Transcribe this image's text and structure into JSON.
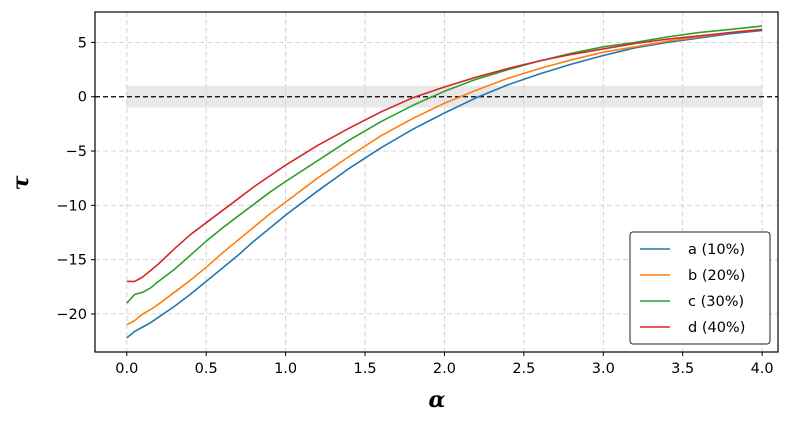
{
  "chart_data": {
    "type": "line",
    "xlabel": "α",
    "ylabel": "τ",
    "xlim": [
      -0.2,
      4.1
    ],
    "ylim": [
      -23.5,
      7.8
    ],
    "xticks": [
      0.0,
      0.5,
      1.0,
      1.5,
      2.0,
      2.5,
      3.0,
      3.5,
      4.0
    ],
    "xtick_labels": [
      "0.0",
      "0.5",
      "1.0",
      "1.5",
      "2.0",
      "2.5",
      "3.0",
      "3.5",
      "4.0"
    ],
    "yticks": [
      5,
      0,
      -5,
      -10,
      -15,
      -20
    ],
    "ytick_labels": [
      "5",
      "0",
      "−5",
      "−10",
      "−15",
      "−20"
    ],
    "grid": true,
    "legend_position": "lower-right",
    "reference_line": {
      "y": 0,
      "style": "dashed",
      "color": "#000000"
    },
    "band": {
      "y_range": [
        -1,
        1
      ],
      "x_range": [
        0,
        4
      ],
      "color": "#e8e8e8"
    },
    "x": [
      0.0,
      0.05,
      0.1,
      0.15,
      0.2,
      0.3,
      0.4,
      0.5,
      0.6,
      0.7,
      0.8,
      0.9,
      1.0,
      1.2,
      1.4,
      1.6,
      1.8,
      2.0,
      2.2,
      2.4,
      2.6,
      2.8,
      3.0,
      3.2,
      3.4,
      3.6,
      3.8,
      4.0
    ],
    "series": [
      {
        "name": "a (10%)",
        "color": "#1f77b4",
        "values": [
          -22.2,
          -21.6,
          -21.2,
          -20.8,
          -20.3,
          -19.3,
          -18.2,
          -17.0,
          -15.8,
          -14.6,
          -13.3,
          -12.1,
          -10.9,
          -8.7,
          -6.6,
          -4.7,
          -3.0,
          -1.5,
          -0.1,
          1.1,
          2.1,
          3.0,
          3.8,
          4.5,
          5.0,
          5.4,
          5.8,
          6.1
        ]
      },
      {
        "name": "b (20%)",
        "color": "#ff7f0e",
        "values": [
          -21.0,
          -20.6,
          -20.0,
          -19.6,
          -19.1,
          -18.0,
          -16.9,
          -15.7,
          -14.4,
          -13.2,
          -12.0,
          -10.8,
          -9.7,
          -7.5,
          -5.5,
          -3.6,
          -2.0,
          -0.6,
          0.6,
          1.7,
          2.6,
          3.4,
          4.1,
          4.6,
          5.1,
          5.5,
          5.9,
          6.2
        ]
      },
      {
        "name": "c (30%)",
        "color": "#2ca02c",
        "values": [
          -19.0,
          -18.2,
          -18.0,
          -17.6,
          -17.0,
          -15.9,
          -14.6,
          -13.3,
          -12.1,
          -11.0,
          -9.9,
          -8.8,
          -7.8,
          -5.9,
          -4.0,
          -2.3,
          -0.8,
          0.5,
          1.6,
          2.5,
          3.3,
          4.0,
          4.6,
          5.0,
          5.5,
          5.9,
          6.2,
          6.5
        ]
      },
      {
        "name": "d (40%)",
        "color": "#d62728",
        "values": [
          -17.0,
          -17.0,
          -16.6,
          -16.0,
          -15.4,
          -14.0,
          -12.7,
          -11.6,
          -10.5,
          -9.4,
          -8.3,
          -7.3,
          -6.3,
          -4.5,
          -2.9,
          -1.4,
          -0.1,
          0.9,
          1.8,
          2.6,
          3.3,
          3.9,
          4.4,
          4.9,
          5.3,
          5.6,
          5.9,
          6.2
        ]
      }
    ]
  }
}
